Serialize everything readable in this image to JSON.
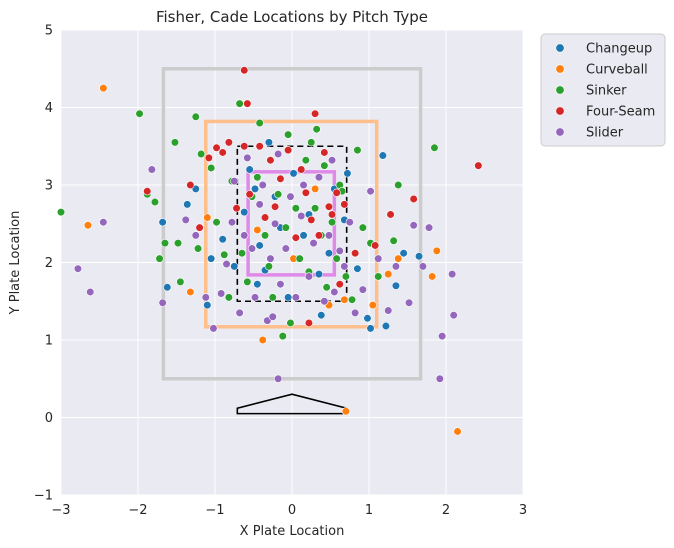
{
  "chart_data": {
    "type": "scatter",
    "title": "Fisher, Cade Locations by Pitch Type",
    "xlabel": "X Plate Location",
    "ylabel": "Y Plate Location",
    "xlim": [
      -3,
      3
    ],
    "ylim": [
      -1,
      5
    ],
    "x_ticks": [
      "−3",
      "−2",
      "−1",
      "0",
      "1",
      "2",
      "3"
    ],
    "y_ticks": [
      "−1",
      "0",
      "1",
      "2",
      "3",
      "4",
      "5"
    ],
    "grid": true,
    "legend_position": "outside-top-right",
    "zones": [
      {
        "name": "outer-zone",
        "color": "#cccccc",
        "x": [
          -1.67,
          1.67
        ],
        "y": [
          0.5,
          4.5
        ]
      },
      {
        "name": "shadow-zone",
        "color": "#ffbf8c",
        "x": [
          -1.12,
          1.1
        ],
        "y": [
          1.17,
          3.82
        ]
      },
      {
        "name": "strike-zone",
        "color": "#000000",
        "x": [
          -0.71,
          0.71
        ],
        "y": [
          1.5,
          3.5
        ]
      },
      {
        "name": "heart-zone",
        "color": "#e08ae8",
        "x": [
          -0.57,
          0.55
        ],
        "y": [
          1.84,
          3.17
        ]
      }
    ],
    "home_plate": [
      [
        -0.71,
        0.05
      ],
      [
        -0.71,
        0.12
      ],
      [
        0,
        0.3
      ],
      [
        0.71,
        0.12
      ],
      [
        0.71,
        0.05
      ]
    ],
    "series": [
      {
        "name": "Changeup",
        "color": "#1f77b4",
        "points": [
          [
            -1.68,
            2.52
          ],
          [
            -1.62,
            1.68
          ],
          [
            -1.36,
            2.75
          ],
          [
            -1.25,
            2.95
          ],
          [
            -1.1,
            1.45
          ],
          [
            -1.05,
            2.05
          ],
          [
            -0.9,
            2.3
          ],
          [
            -0.75,
            1.95
          ],
          [
            -0.62,
            2.65
          ],
          [
            -0.55,
            3.2
          ],
          [
            -0.48,
            2.95
          ],
          [
            -0.45,
            1.72
          ],
          [
            -0.42,
            2.22
          ],
          [
            -0.35,
            1.9
          ],
          [
            -0.3,
            3.55
          ],
          [
            -0.22,
            2.85
          ],
          [
            -0.15,
            2.45
          ],
          [
            -0.05,
            1.55
          ],
          [
            0.02,
            3.15
          ],
          [
            0.08,
            2.05
          ],
          [
            0.15,
            2.35
          ],
          [
            0.22,
            2.62
          ],
          [
            0.35,
            1.85
          ],
          [
            0.38,
            1.32
          ],
          [
            0.48,
            2.12
          ],
          [
            0.55,
            2.95
          ],
          [
            0.68,
            2.55
          ],
          [
            0.72,
            3.15
          ],
          [
            0.85,
            1.92
          ],
          [
            0.98,
            1.28
          ],
          [
            1.02,
            1.15
          ],
          [
            1.18,
            3.38
          ],
          [
            1.22,
            1.18
          ],
          [
            1.35,
            1.7
          ],
          [
            1.45,
            2.12
          ],
          [
            1.65,
            2.08
          ]
        ]
      },
      {
        "name": "Curveball",
        "color": "#ff7f0e",
        "points": [
          [
            -2.45,
            4.25
          ],
          [
            -2.65,
            2.48
          ],
          [
            -1.32,
            1.62
          ],
          [
            -1.1,
            2.58
          ],
          [
            -0.38,
            1.0
          ],
          [
            -0.45,
            2.42
          ],
          [
            0.02,
            2.05
          ],
          [
            0.48,
            1.45
          ],
          [
            0.68,
            1.52
          ],
          [
            0.7,
            0.08
          ],
          [
            1.05,
            1.45
          ],
          [
            1.25,
            1.85
          ],
          [
            1.38,
            2.05
          ],
          [
            1.82,
            1.82
          ],
          [
            1.88,
            2.15
          ],
          [
            2.15,
            -0.18
          ],
          [
            0.3,
            2.95
          ]
        ]
      },
      {
        "name": "Sinker",
        "color": "#2ca02c",
        "points": [
          [
            -3.0,
            2.65
          ],
          [
            -1.98,
            3.92
          ],
          [
            -1.88,
            2.88
          ],
          [
            -1.78,
            2.78
          ],
          [
            -1.72,
            2.05
          ],
          [
            -1.65,
            2.25
          ],
          [
            -1.52,
            3.55
          ],
          [
            -1.48,
            2.25
          ],
          [
            -1.45,
            1.75
          ],
          [
            -1.25,
            3.88
          ],
          [
            -1.22,
            2.18
          ],
          [
            -1.18,
            3.4
          ],
          [
            -1.05,
            3.22
          ],
          [
            -0.98,
            2.52
          ],
          [
            -0.88,
            2.1
          ],
          [
            -0.82,
            1.55
          ],
          [
            -0.78,
            3.05
          ],
          [
            -0.68,
            4.05
          ],
          [
            -0.65,
            2.12
          ],
          [
            -0.58,
            1.75
          ],
          [
            -0.52,
            2.85
          ],
          [
            -0.45,
            3.1
          ],
          [
            -0.42,
            3.8
          ],
          [
            -0.35,
            2.35
          ],
          [
            -0.3,
            1.95
          ],
          [
            -0.25,
            1.55
          ],
          [
            -0.18,
            2.88
          ],
          [
            -0.12,
            1.05
          ],
          [
            -0.08,
            2.45
          ],
          [
            -0.05,
            3.65
          ],
          [
            -0.02,
            1.22
          ],
          [
            0.05,
            2.7
          ],
          [
            0.1,
            2.05
          ],
          [
            0.18,
            3.32
          ],
          [
            0.22,
            1.88
          ],
          [
            0.25,
            3.55
          ],
          [
            0.3,
            2.7
          ],
          [
            0.32,
            3.72
          ],
          [
            0.38,
            2.35
          ],
          [
            0.42,
            3.25
          ],
          [
            0.45,
            1.68
          ],
          [
            0.52,
            2.52
          ],
          [
            0.58,
            2.05
          ],
          [
            0.62,
            3.0
          ],
          [
            0.65,
            2.92
          ],
          [
            0.7,
            1.82
          ],
          [
            0.78,
            1.52
          ],
          [
            0.85,
            3.45
          ],
          [
            0.92,
            2.45
          ],
          [
            1.02,
            2.25
          ],
          [
            1.12,
            1.82
          ],
          [
            1.32,
            2.28
          ],
          [
            1.38,
            3.0
          ],
          [
            1.85,
            3.48
          ]
        ]
      },
      {
        "name": "Four-Seam",
        "color": "#d62728",
        "points": [
          [
            -1.88,
            2.92
          ],
          [
            -1.32,
            3.0
          ],
          [
            -1.2,
            2.45
          ],
          [
            -1.08,
            3.35
          ],
          [
            -0.98,
            3.48
          ],
          [
            -0.9,
            3.42
          ],
          [
            -0.82,
            3.55
          ],
          [
            -0.72,
            2.7
          ],
          [
            -0.62,
            3.5
          ],
          [
            -0.58,
            4.05
          ],
          [
            -0.62,
            4.48
          ],
          [
            -0.55,
            2.88
          ],
          [
            -0.42,
            3.5
          ],
          [
            -0.35,
            2.58
          ],
          [
            -0.28,
            3.32
          ],
          [
            -0.22,
            2.72
          ],
          [
            -0.15,
            3.08
          ],
          [
            -0.05,
            3.45
          ],
          [
            0.05,
            2.32
          ],
          [
            0.12,
            3.2
          ],
          [
            0.18,
            2.9
          ],
          [
            0.25,
            2.55
          ],
          [
            0.3,
            3.92
          ],
          [
            0.35,
            2.35
          ],
          [
            0.42,
            3.42
          ],
          [
            0.48,
            2.72
          ],
          [
            0.52,
            2.62
          ],
          [
            0.58,
            2.9
          ],
          [
            0.62,
            1.72
          ],
          [
            0.68,
            2.75
          ],
          [
            0.82,
            2.12
          ],
          [
            1.08,
            2.22
          ],
          [
            1.28,
            2.62
          ],
          [
            1.58,
            2.82
          ],
          [
            2.42,
            3.25
          ],
          [
            0.22,
            1.22
          ]
        ]
      },
      {
        "name": "Slider",
        "color": "#9467bd",
        "points": [
          [
            -2.78,
            1.92
          ],
          [
            -2.62,
            1.62
          ],
          [
            -2.45,
            2.52
          ],
          [
            -1.82,
            3.2
          ],
          [
            -1.68,
            1.48
          ],
          [
            -1.38,
            2.55
          ],
          [
            -1.25,
            2.35
          ],
          [
            -1.12,
            1.55
          ],
          [
            -1.02,
            1.15
          ],
          [
            -0.92,
            1.6
          ],
          [
            -0.85,
            1.98
          ],
          [
            -0.78,
            2.52
          ],
          [
            -0.75,
            3.05
          ],
          [
            -0.68,
            1.35
          ],
          [
            -0.62,
            2.35
          ],
          [
            -0.58,
            3.35
          ],
          [
            -0.52,
            2.18
          ],
          [
            -0.48,
            1.55
          ],
          [
            -0.42,
            2.75
          ],
          [
            -0.38,
            3.0
          ],
          [
            -0.32,
            1.25
          ],
          [
            -0.28,
            2.05
          ],
          [
            -0.25,
            1.3
          ],
          [
            -0.22,
            2.5
          ],
          [
            -0.18,
            3.4
          ],
          [
            -0.15,
            1.72
          ],
          [
            -0.18,
            0.5
          ],
          [
            -0.08,
            2.18
          ],
          [
            -0.02,
            2.85
          ],
          [
            0.05,
            1.55
          ],
          [
            0.12,
            2.6
          ],
          [
            0.15,
            3.0
          ],
          [
            0.22,
            1.82
          ],
          [
            0.28,
            2.25
          ],
          [
            0.35,
            3.1
          ],
          [
            0.42,
            1.5
          ],
          [
            0.48,
            2.35
          ],
          [
            0.52,
            3.32
          ],
          [
            0.55,
            1.62
          ],
          [
            0.62,
            2.15
          ],
          [
            0.68,
            1.95
          ],
          [
            0.75,
            2.52
          ],
          [
            0.82,
            1.35
          ],
          [
            0.92,
            1.65
          ],
          [
            1.02,
            2.92
          ],
          [
            1.12,
            2.05
          ],
          [
            1.25,
            1.38
          ],
          [
            1.35,
            1.95
          ],
          [
            1.52,
            1.48
          ],
          [
            1.58,
            2.48
          ],
          [
            1.7,
            1.95
          ],
          [
            1.78,
            2.45
          ],
          [
            1.92,
            0.5
          ],
          [
            1.95,
            1.05
          ],
          [
            2.08,
            1.85
          ],
          [
            2.1,
            1.32
          ]
        ]
      }
    ]
  }
}
